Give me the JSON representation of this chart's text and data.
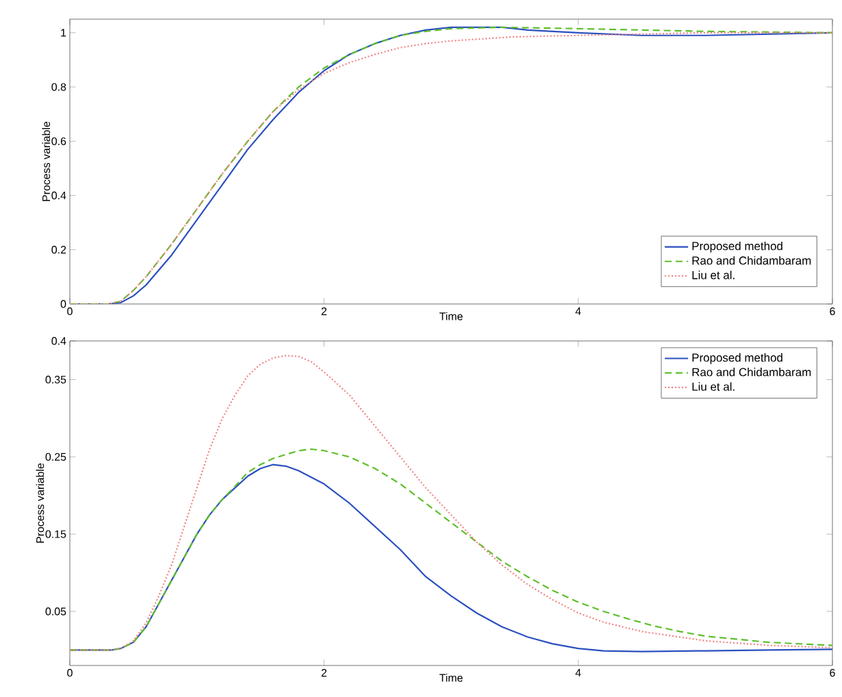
{
  "chart_data": [
    {
      "type": "line",
      "xlabel": "Time",
      "ylabel": "Process variable",
      "xlim": [
        0,
        6
      ],
      "ylim": [
        0,
        1.05
      ],
      "xticks": [
        0,
        2,
        4,
        6
      ],
      "yticks": [
        0,
        0.2,
        0.4,
        0.6,
        0.8,
        1
      ],
      "legend": "bottom right",
      "series": [
        {
          "name": "Proposed method",
          "color": "#2a4fbf",
          "line_style": "solid",
          "x": [
            0,
            0.3,
            0.4,
            0.5,
            0.6,
            0.8,
            1.0,
            1.2,
            1.4,
            1.6,
            1.8,
            2.0,
            2.2,
            2.4,
            2.6,
            2.8,
            3.0,
            3.2,
            3.4,
            3.6,
            4.0,
            4.5,
            5.0,
            6.0
          ],
          "values": [
            0,
            0,
            0.005,
            0.03,
            0.07,
            0.18,
            0.31,
            0.44,
            0.57,
            0.68,
            0.78,
            0.86,
            0.92,
            0.96,
            0.99,
            1.01,
            1.02,
            1.02,
            1.02,
            1.01,
            1.0,
            0.99,
            0.99,
            1.0
          ]
        },
        {
          "name": "Rao and Chidambaram",
          "color": "#5cbf2a",
          "line_style": "dashed",
          "x": [
            0,
            0.3,
            0.4,
            0.5,
            0.6,
            0.8,
            1.0,
            1.2,
            1.4,
            1.6,
            1.8,
            2.0,
            2.2,
            2.4,
            2.6,
            2.8,
            3.0,
            3.4,
            4.0,
            5.0,
            6.0
          ],
          "values": [
            0,
            0,
            0.01,
            0.05,
            0.1,
            0.22,
            0.35,
            0.48,
            0.6,
            0.71,
            0.8,
            0.87,
            0.92,
            0.96,
            0.99,
            1.005,
            1.015,
            1.02,
            1.015,
            1.005,
            1.0
          ]
        },
        {
          "name": "Liu et al.",
          "color": "#f08080",
          "line_style": "dotted",
          "x": [
            0,
            0.3,
            0.4,
            0.5,
            0.6,
            0.8,
            1.0,
            1.2,
            1.4,
            1.6,
            1.8,
            2.0,
            2.2,
            2.4,
            2.6,
            2.8,
            3.0,
            3.5,
            4.0,
            5.0,
            6.0
          ],
          "values": [
            0,
            0,
            0.01,
            0.05,
            0.1,
            0.22,
            0.35,
            0.48,
            0.6,
            0.71,
            0.79,
            0.85,
            0.89,
            0.92,
            0.945,
            0.96,
            0.97,
            0.985,
            0.99,
            1.0,
            1.0
          ]
        }
      ]
    },
    {
      "type": "line",
      "xlabel": "Time",
      "ylabel": "Process variable",
      "xlim": [
        0,
        6
      ],
      "ylim": [
        -0.02,
        0.4
      ],
      "xticks": [
        0,
        2,
        4,
        6
      ],
      "yticks": [
        0.05,
        0.15,
        0.25,
        0.35,
        0.4
      ],
      "legend": "top right",
      "series": [
        {
          "name": "Proposed method",
          "color": "#2a4fbf",
          "line_style": "solid",
          "x": [
            0,
            0.33,
            0.4,
            0.5,
            0.6,
            0.7,
            0.8,
            0.9,
            1.0,
            1.1,
            1.2,
            1.3,
            1.4,
            1.5,
            1.6,
            1.7,
            1.8,
            2.0,
            2.2,
            2.4,
            2.6,
            2.8,
            3.0,
            3.2,
            3.4,
            3.6,
            3.8,
            4.0,
            4.2,
            4.5,
            5.0,
            5.5,
            6.0
          ],
          "values": [
            0,
            0,
            0.002,
            0.01,
            0.03,
            0.06,
            0.09,
            0.12,
            0.15,
            0.175,
            0.195,
            0.21,
            0.225,
            0.235,
            0.24,
            0.238,
            0.232,
            0.215,
            0.19,
            0.16,
            0.13,
            0.095,
            0.07,
            0.048,
            0.03,
            0.017,
            0.008,
            0.002,
            -0.001,
            -0.002,
            -0.001,
            0.0,
            0.001
          ]
        },
        {
          "name": "Rao and Chidambaram",
          "color": "#5cbf2a",
          "line_style": "dashed",
          "x": [
            0,
            0.33,
            0.4,
            0.5,
            0.6,
            0.7,
            0.8,
            0.9,
            1.0,
            1.1,
            1.2,
            1.3,
            1.4,
            1.5,
            1.6,
            1.8,
            1.9,
            2.0,
            2.2,
            2.4,
            2.6,
            2.8,
            3.0,
            3.2,
            3.4,
            3.6,
            3.8,
            4.0,
            4.2,
            4.4,
            4.6,
            4.8,
            5.0,
            5.5,
            6.0
          ],
          "values": [
            0,
            0,
            0.002,
            0.01,
            0.03,
            0.06,
            0.09,
            0.12,
            0.15,
            0.175,
            0.195,
            0.212,
            0.23,
            0.24,
            0.248,
            0.258,
            0.26,
            0.258,
            0.25,
            0.235,
            0.215,
            0.19,
            0.165,
            0.14,
            0.115,
            0.095,
            0.077,
            0.062,
            0.05,
            0.04,
            0.031,
            0.024,
            0.018,
            0.01,
            0.006
          ]
        },
        {
          "name": "Liu et al.",
          "color": "#f08080",
          "line_style": "dotted",
          "x": [
            0,
            0.33,
            0.4,
            0.5,
            0.6,
            0.7,
            0.8,
            0.9,
            1.0,
            1.1,
            1.2,
            1.3,
            1.4,
            1.5,
            1.6,
            1.7,
            1.8,
            1.9,
            2.0,
            2.2,
            2.4,
            2.6,
            2.8,
            3.0,
            3.2,
            3.4,
            3.6,
            3.8,
            4.0,
            4.2,
            4.5,
            5.0,
            5.5,
            6.0
          ],
          "values": [
            0,
            0,
            0.002,
            0.012,
            0.035,
            0.07,
            0.11,
            0.16,
            0.21,
            0.26,
            0.3,
            0.33,
            0.355,
            0.37,
            0.378,
            0.381,
            0.38,
            0.373,
            0.36,
            0.33,
            0.29,
            0.25,
            0.21,
            0.175,
            0.14,
            0.11,
            0.085,
            0.065,
            0.048,
            0.036,
            0.024,
            0.012,
            0.006,
            0.003
          ]
        }
      ]
    }
  ]
}
